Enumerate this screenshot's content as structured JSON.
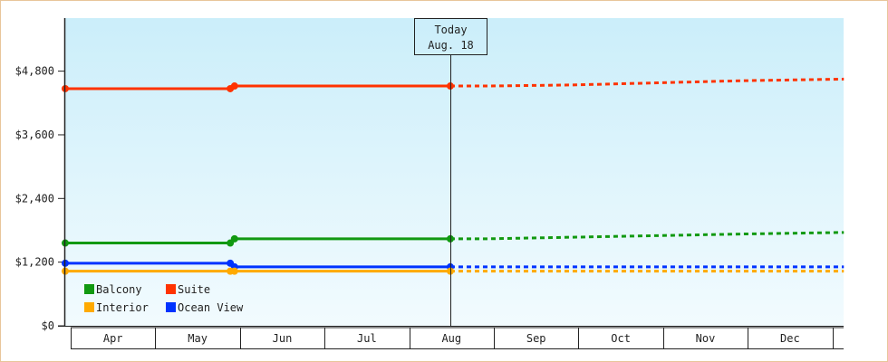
{
  "chart_data": {
    "type": "line",
    "title": "",
    "xlabel": "",
    "ylabel": "",
    "ylim": [
      0,
      5800
    ],
    "yticks": [
      0,
      1200,
      2400,
      3600,
      4800
    ],
    "ytick_labels": [
      "$0",
      "$1,200",
      "$2,400",
      "$3,600",
      "$4,800"
    ],
    "categories": [
      "Apr",
      "May",
      "Jun",
      "Jul",
      "Aug",
      "Sep",
      "Oct",
      "Nov",
      "Dec"
    ],
    "today": {
      "label_line1": "Today",
      "label_line2": "Aug. 18",
      "x": 4.55
    },
    "legend_position": "bottom-left",
    "series": [
      {
        "name": "Suite",
        "color": "#ff3300",
        "solid": [
          [
            0,
            4470
          ],
          [
            1.95,
            4470
          ],
          [
            2.0,
            4520
          ],
          [
            4.55,
            4520
          ]
        ],
        "markers": [
          [
            0,
            4470
          ],
          [
            1.95,
            4470
          ],
          [
            2.0,
            4520
          ],
          [
            4.55,
            4520
          ]
        ],
        "dotted": [
          [
            4.55,
            4520
          ],
          [
            5.0,
            4520
          ],
          [
            6.0,
            4540
          ],
          [
            7.0,
            4580
          ],
          [
            8.0,
            4620
          ],
          [
            9.2,
            4650
          ]
        ]
      },
      {
        "name": "Balcony",
        "color": "#119911",
        "solid": [
          [
            0,
            1560
          ],
          [
            1.95,
            1560
          ],
          [
            2.0,
            1640
          ],
          [
            4.55,
            1640
          ]
        ],
        "markers": [
          [
            0,
            1560
          ],
          [
            1.95,
            1560
          ],
          [
            2.0,
            1640
          ],
          [
            4.55,
            1640
          ]
        ],
        "dotted": [
          [
            4.55,
            1640
          ],
          [
            5.0,
            1640
          ],
          [
            6.0,
            1670
          ],
          [
            7.0,
            1700
          ],
          [
            8.0,
            1730
          ],
          [
            9.2,
            1760
          ]
        ]
      },
      {
        "name": "Ocean View",
        "color": "#0033ff",
        "solid": [
          [
            0,
            1180
          ],
          [
            1.95,
            1180
          ],
          [
            2.0,
            1110
          ],
          [
            4.55,
            1110
          ]
        ],
        "markers": [
          [
            0,
            1180
          ],
          [
            1.95,
            1180
          ],
          [
            2.0,
            1110
          ],
          [
            4.55,
            1110
          ]
        ],
        "dotted": [
          [
            4.55,
            1110
          ],
          [
            9.2,
            1110
          ]
        ]
      },
      {
        "name": "Interior",
        "color": "#ffaa00",
        "solid": [
          [
            0,
            1030
          ],
          [
            1.95,
            1030
          ],
          [
            2.0,
            1030
          ],
          [
            4.55,
            1030
          ]
        ],
        "markers": [
          [
            0,
            1030
          ],
          [
            1.95,
            1030
          ],
          [
            2.0,
            1030
          ],
          [
            4.55,
            1030
          ]
        ],
        "dotted": [
          [
            4.55,
            1030
          ],
          [
            9.2,
            1030
          ]
        ]
      }
    ],
    "legend": [
      {
        "name": "Balcony",
        "color": "#119911"
      },
      {
        "name": "Suite",
        "color": "#ff3300"
      },
      {
        "name": "Interior",
        "color": "#ffaa00"
      },
      {
        "name": "Ocean View",
        "color": "#0033ff"
      }
    ]
  }
}
